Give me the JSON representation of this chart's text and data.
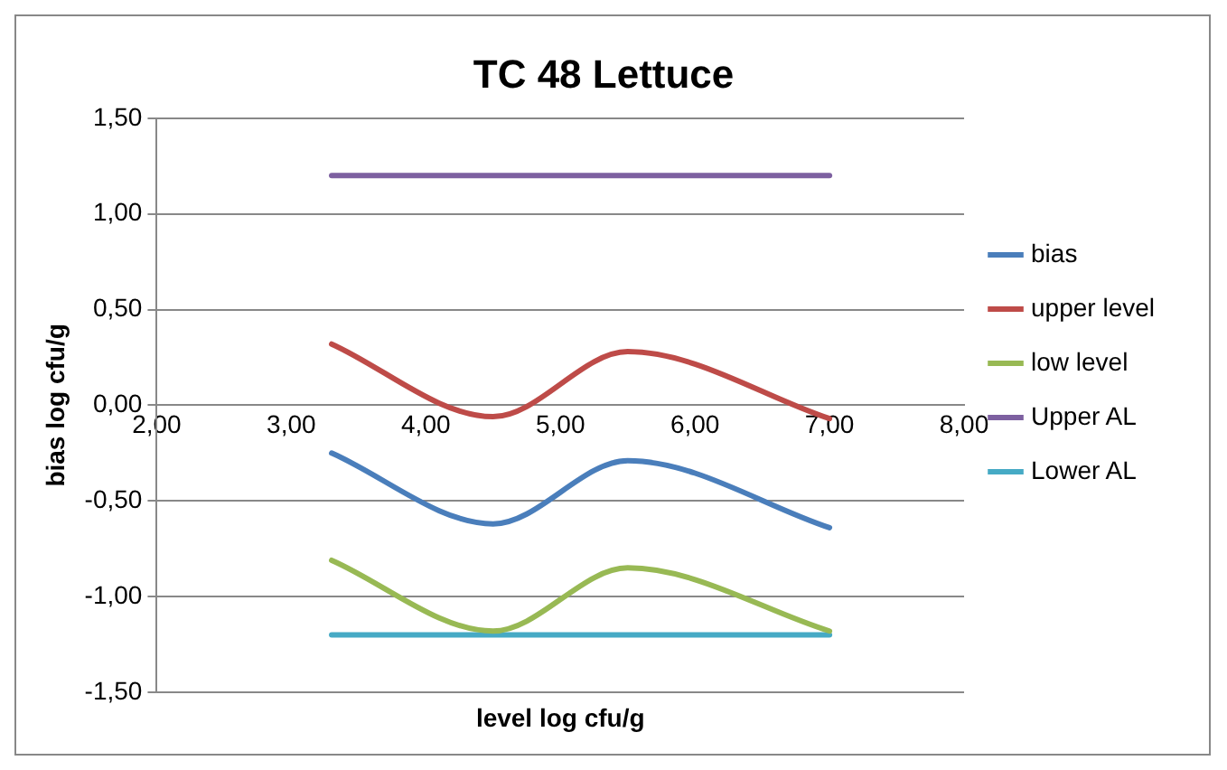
{
  "chart_data": {
    "type": "line",
    "title": "TC 48 Lettuce",
    "xlabel": "level log cfu/g",
    "ylabel": "bias log cfu/g",
    "x": [
      3.3,
      4.5,
      5.5,
      7.0
    ],
    "series": [
      {
        "name": "bias",
        "color": "#4a7ebb",
        "values": [
          -0.25,
          -0.62,
          -0.29,
          -0.64
        ]
      },
      {
        "name": "upper level",
        "color": "#be4b48",
        "values": [
          0.32,
          -0.06,
          0.28,
          -0.07
        ]
      },
      {
        "name": "low level",
        "color": "#98b954",
        "values": [
          -0.81,
          -1.18,
          -0.85,
          -1.18
        ]
      },
      {
        "name": "Upper AL",
        "color": "#7d60a0",
        "values": [
          1.2,
          1.2,
          1.2,
          1.2
        ]
      },
      {
        "name": "Lower AL",
        "color": "#46aac5",
        "values": [
          -1.2,
          -1.2,
          -1.2,
          -1.2
        ]
      }
    ],
    "xlim": [
      2,
      8
    ],
    "xticks": [
      {
        "value": 2,
        "label": "2,00"
      },
      {
        "value": 3,
        "label": "3,00"
      },
      {
        "value": 4,
        "label": "4,00"
      },
      {
        "value": 5,
        "label": "5,00"
      },
      {
        "value": 6,
        "label": "6,00"
      },
      {
        "value": 7,
        "label": "7,00"
      },
      {
        "value": 8,
        "label": "8,00"
      }
    ],
    "ylim": [
      -1.5,
      1.5
    ],
    "yticks": [
      {
        "value": -1.5,
        "label": "-1,50"
      },
      {
        "value": -1,
        "label": "-1,00"
      },
      {
        "value": -0.5,
        "label": "-0,50"
      },
      {
        "value": 0,
        "label": "0,00"
      },
      {
        "value": 0.5,
        "label": "0,50"
      },
      {
        "value": 1,
        "label": "1,00"
      },
      {
        "value": 1.5,
        "label": "1,50"
      }
    ],
    "grid": "y",
    "legend": "right",
    "line_style": "solid",
    "marker": "none"
  }
}
